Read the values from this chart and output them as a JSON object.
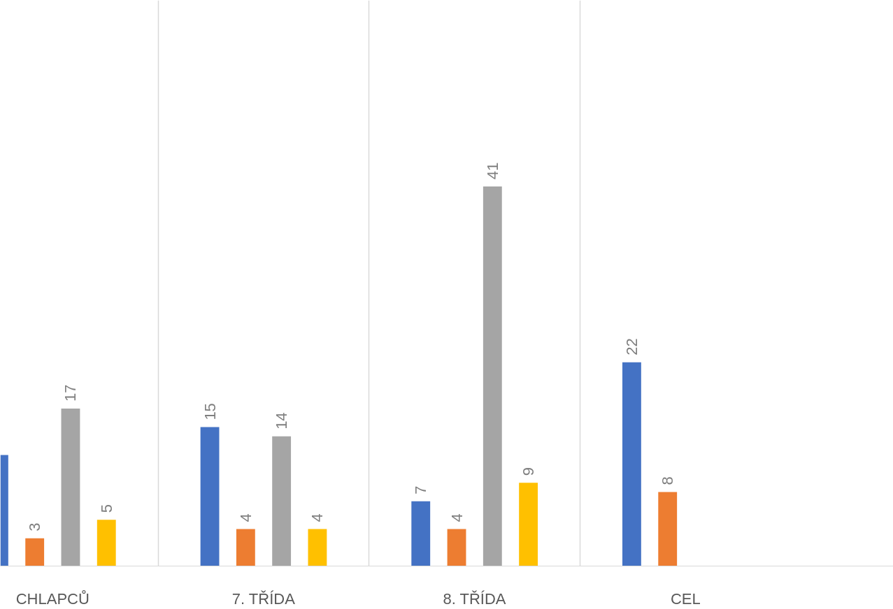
{
  "chart_data": {
    "type": "bar",
    "categories": [
      "CHLAPCŮ",
      "7. TŘÍDA",
      "8. TŘÍDA",
      "CEL"
    ],
    "series": [
      {
        "color": "#4472c4",
        "values": [
          12,
          15,
          7,
          22
        ],
        "value_labels": [
          null,
          "15",
          "7",
          "22"
        ]
      },
      {
        "color": "#ed7d31",
        "values": [
          3,
          4,
          4,
          8
        ],
        "value_labels": [
          "3",
          "4",
          "4",
          "8"
        ]
      },
      {
        "color": "#a5a5a5",
        "values": [
          17,
          14,
          41,
          null
        ],
        "value_labels": [
          "17",
          "14",
          "41",
          null
        ]
      },
      {
        "color": "#ffc000",
        "values": [
          5,
          4,
          9,
          null
        ],
        "value_labels": [
          "5",
          "4",
          "9",
          null
        ]
      }
    ],
    "grid": "x"
  }
}
